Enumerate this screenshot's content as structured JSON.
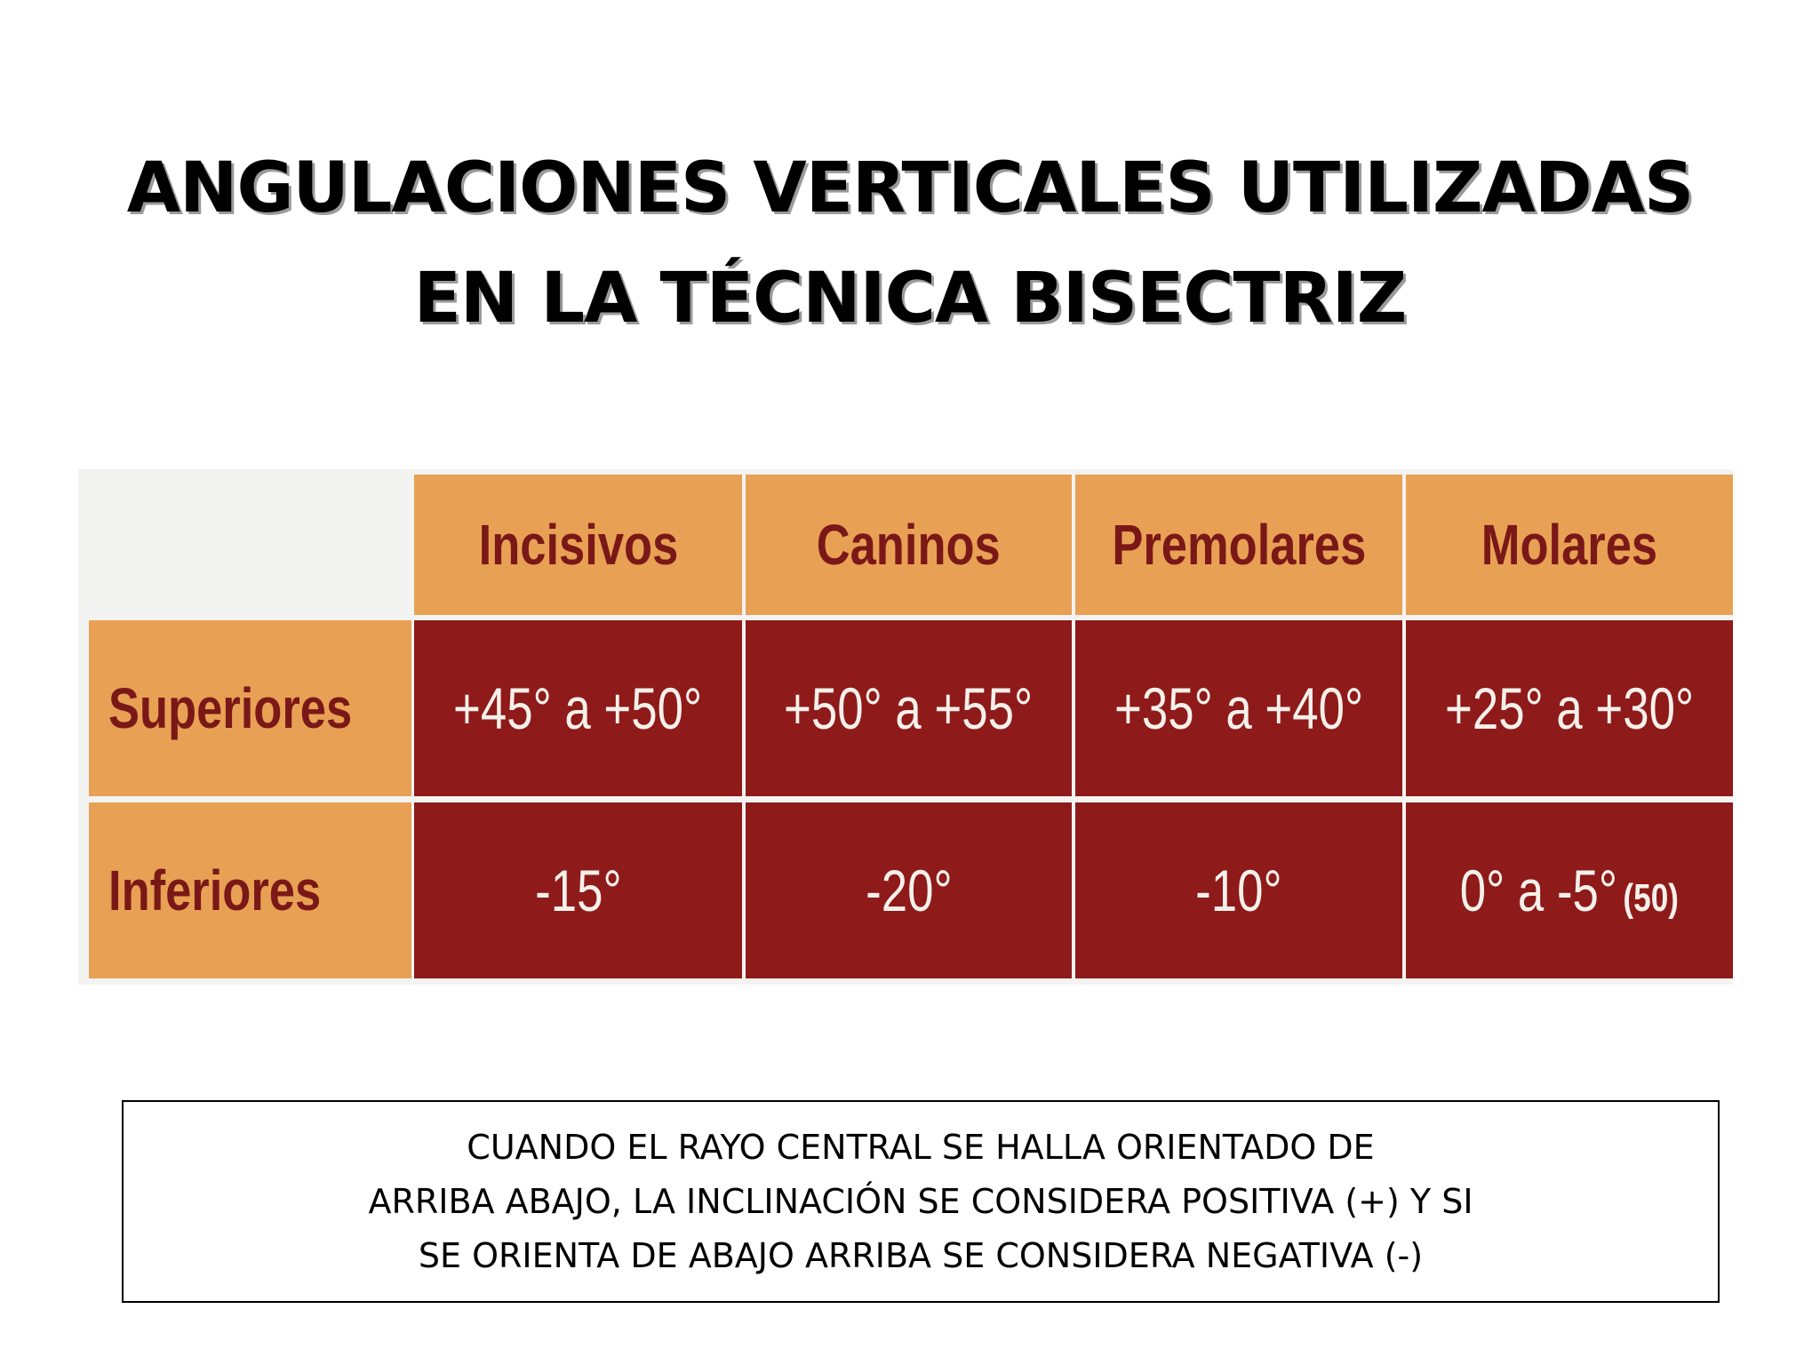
{
  "title": {
    "line1": "ANGULACIONES VERTICALES UTILIZADAS",
    "line2": "EN LA TÉCNICA BISECTRIZ"
  },
  "table": {
    "columns": [
      "Incisivos",
      "Caninos",
      "Premolares",
      "Molares"
    ],
    "rows": [
      {
        "label": "Superiores",
        "values": [
          "+45° a +50°",
          "+50° a +55°",
          "+35° a +40°",
          "+25° a +30°"
        ]
      },
      {
        "label": "Inferiores",
        "values": [
          "-15°",
          "-20°",
          "-10°",
          "0° a -5°"
        ]
      }
    ],
    "reference": "(50)",
    "colors": {
      "header": "#e8a154",
      "header_text": "#7a1818",
      "value_bg": "#8e1a1a",
      "value_text": "#f4f0ea"
    }
  },
  "note": {
    "line1": "CUANDO EL RAYO CENTRAL SE HALLA ORIENTADO DE",
    "line2": "ARRIBA ABAJO, LA INCLINACIÓN SE CONSIDERA POSITIVA (+) Y SI",
    "line3": "SE ORIENTA DE ABAJO ARRIBA SE CONSIDERA NEGATIVA (-)"
  }
}
